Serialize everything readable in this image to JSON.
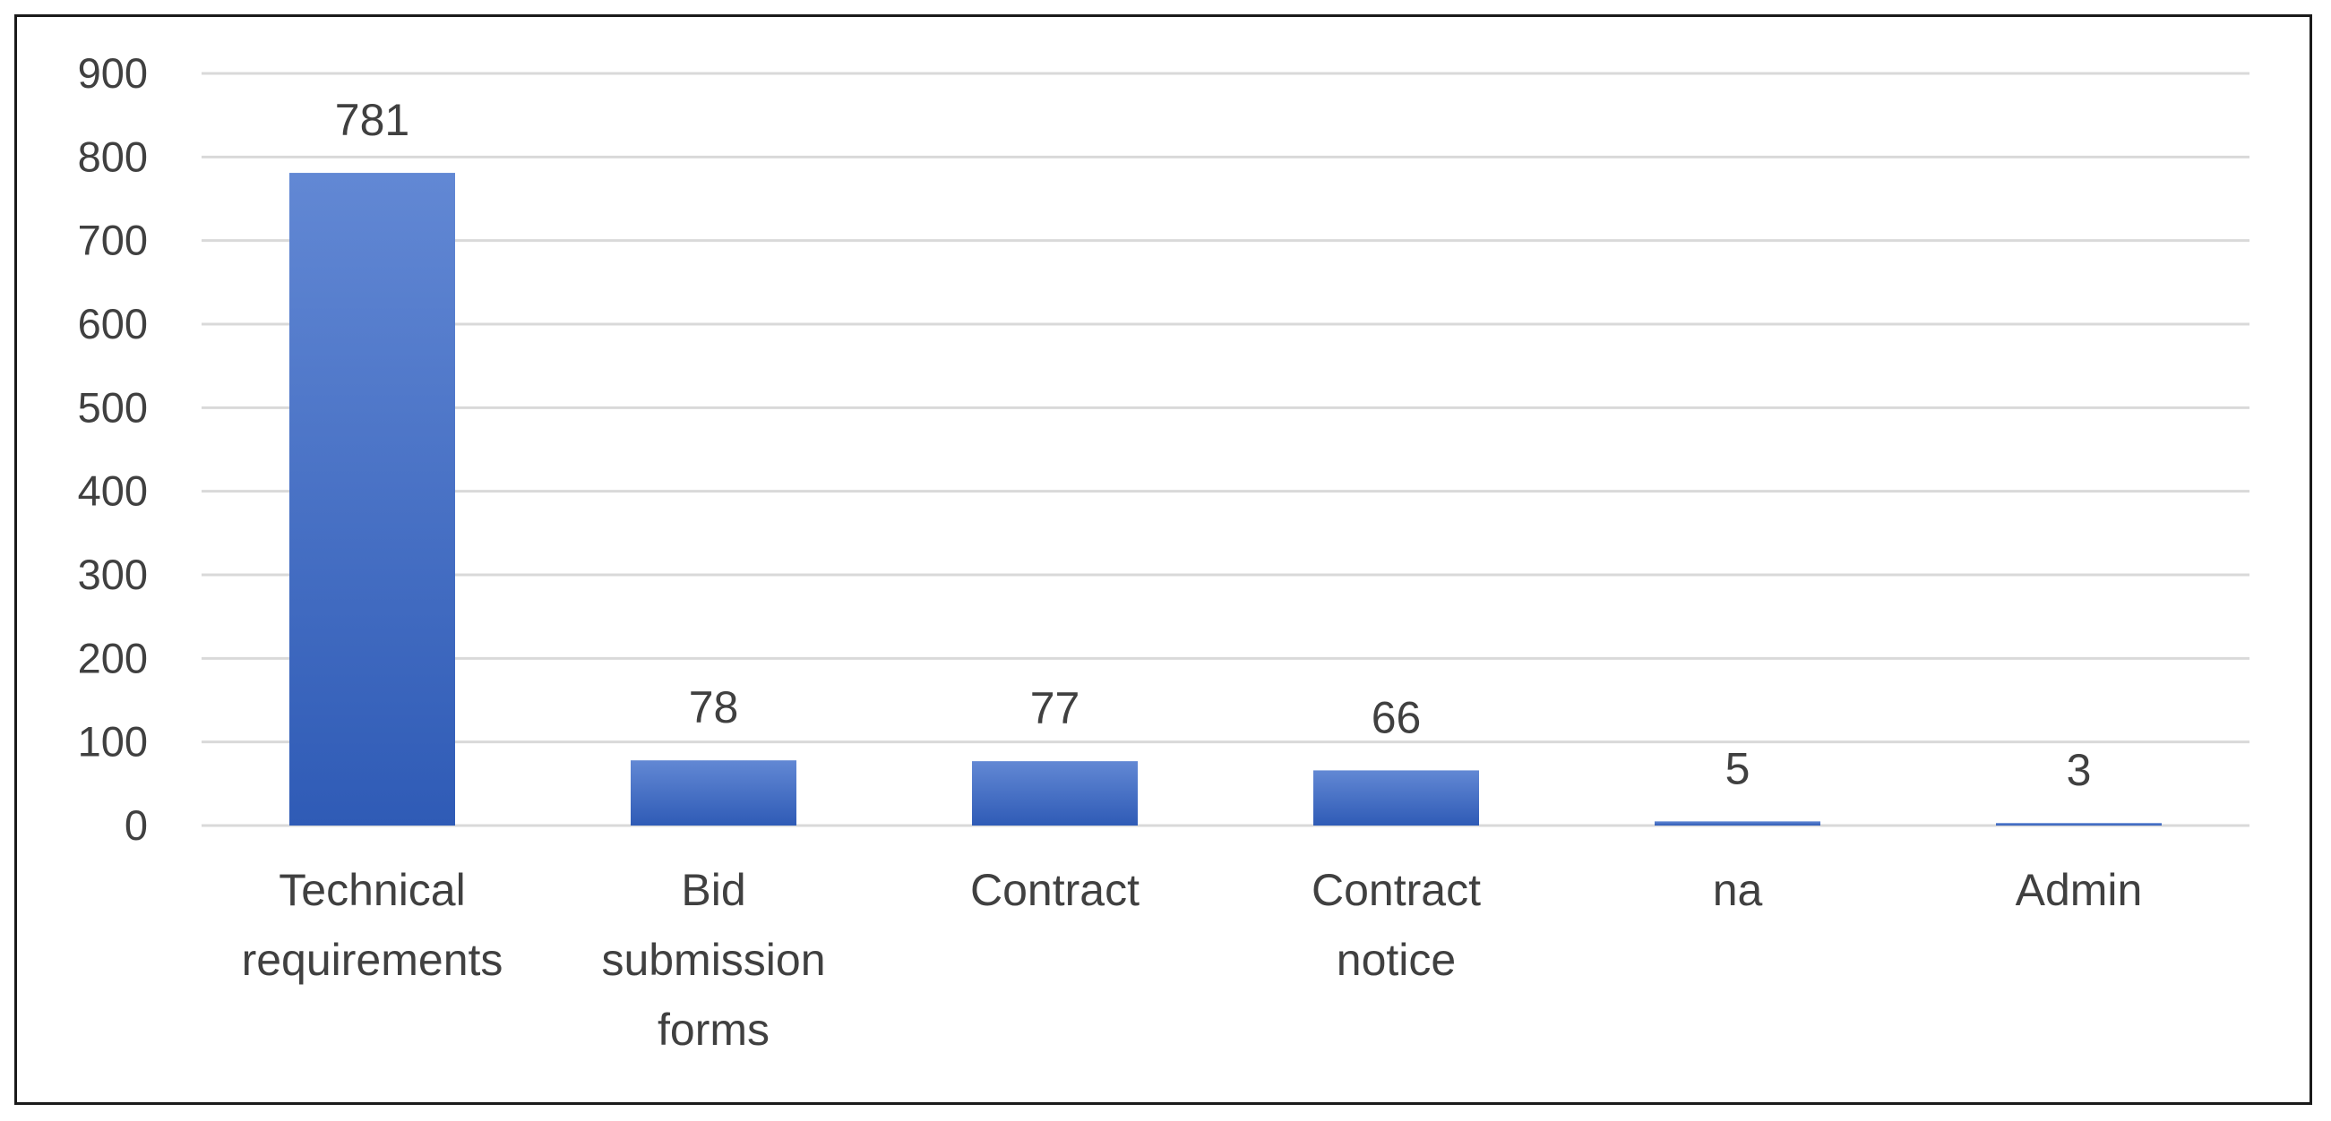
{
  "chart_data": {
    "type": "bar",
    "title": "",
    "xlabel": "",
    "ylabel": "",
    "categories": [
      [
        "Technical",
        "requirements"
      ],
      [
        "Bid",
        "submission",
        "forms"
      ],
      [
        "Contract"
      ],
      [
        "Contract",
        "notice"
      ],
      [
        "na"
      ],
      [
        "Admin"
      ]
    ],
    "values": [
      781,
      78,
      77,
      66,
      5,
      3
    ],
    "data_labels": [
      "781",
      "78",
      "77",
      "66",
      "5",
      "3"
    ],
    "ylim": [
      0,
      900
    ],
    "yticks": [
      0,
      100,
      200,
      300,
      400,
      500,
      600,
      700,
      800,
      900
    ],
    "grid": true,
    "legend": "none",
    "colors": {
      "bar_top": "#6288d4",
      "bar_bottom": "#2f5bb6",
      "grid": "#d9d9d9",
      "text": "#404040",
      "frame": "#1a1a1a"
    }
  }
}
